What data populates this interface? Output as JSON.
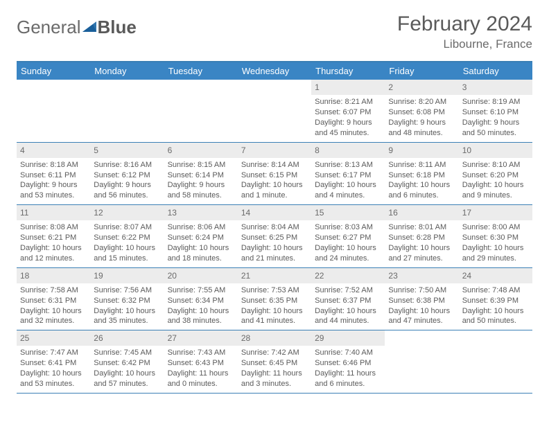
{
  "logo": {
    "left": "General",
    "right": "Blue"
  },
  "title": "February 2024",
  "location": "Libourne, France",
  "colors": {
    "header_bg": "#3a85c4",
    "header_border": "#3a7fb5",
    "daynum_bg": "#ececec",
    "text": "#5a5a5a"
  },
  "day_names": [
    "Sunday",
    "Monday",
    "Tuesday",
    "Wednesday",
    "Thursday",
    "Friday",
    "Saturday"
  ],
  "weeks": [
    [
      null,
      null,
      null,
      null,
      {
        "n": "1",
        "sr": "8:21 AM",
        "ss": "6:07 PM",
        "dl": "9 hours and 45 minutes."
      },
      {
        "n": "2",
        "sr": "8:20 AM",
        "ss": "6:08 PM",
        "dl": "9 hours and 48 minutes."
      },
      {
        "n": "3",
        "sr": "8:19 AM",
        "ss": "6:10 PM",
        "dl": "9 hours and 50 minutes."
      }
    ],
    [
      {
        "n": "4",
        "sr": "8:18 AM",
        "ss": "6:11 PM",
        "dl": "9 hours and 53 minutes."
      },
      {
        "n": "5",
        "sr": "8:16 AM",
        "ss": "6:12 PM",
        "dl": "9 hours and 56 minutes."
      },
      {
        "n": "6",
        "sr": "8:15 AM",
        "ss": "6:14 PM",
        "dl": "9 hours and 58 minutes."
      },
      {
        "n": "7",
        "sr": "8:14 AM",
        "ss": "6:15 PM",
        "dl": "10 hours and 1 minute."
      },
      {
        "n": "8",
        "sr": "8:13 AM",
        "ss": "6:17 PM",
        "dl": "10 hours and 4 minutes."
      },
      {
        "n": "9",
        "sr": "8:11 AM",
        "ss": "6:18 PM",
        "dl": "10 hours and 6 minutes."
      },
      {
        "n": "10",
        "sr": "8:10 AM",
        "ss": "6:20 PM",
        "dl": "10 hours and 9 minutes."
      }
    ],
    [
      {
        "n": "11",
        "sr": "8:08 AM",
        "ss": "6:21 PM",
        "dl": "10 hours and 12 minutes."
      },
      {
        "n": "12",
        "sr": "8:07 AM",
        "ss": "6:22 PM",
        "dl": "10 hours and 15 minutes."
      },
      {
        "n": "13",
        "sr": "8:06 AM",
        "ss": "6:24 PM",
        "dl": "10 hours and 18 minutes."
      },
      {
        "n": "14",
        "sr": "8:04 AM",
        "ss": "6:25 PM",
        "dl": "10 hours and 21 minutes."
      },
      {
        "n": "15",
        "sr": "8:03 AM",
        "ss": "6:27 PM",
        "dl": "10 hours and 24 minutes."
      },
      {
        "n": "16",
        "sr": "8:01 AM",
        "ss": "6:28 PM",
        "dl": "10 hours and 27 minutes."
      },
      {
        "n": "17",
        "sr": "8:00 AM",
        "ss": "6:30 PM",
        "dl": "10 hours and 29 minutes."
      }
    ],
    [
      {
        "n": "18",
        "sr": "7:58 AM",
        "ss": "6:31 PM",
        "dl": "10 hours and 32 minutes."
      },
      {
        "n": "19",
        "sr": "7:56 AM",
        "ss": "6:32 PM",
        "dl": "10 hours and 35 minutes."
      },
      {
        "n": "20",
        "sr": "7:55 AM",
        "ss": "6:34 PM",
        "dl": "10 hours and 38 minutes."
      },
      {
        "n": "21",
        "sr": "7:53 AM",
        "ss": "6:35 PM",
        "dl": "10 hours and 41 minutes."
      },
      {
        "n": "22",
        "sr": "7:52 AM",
        "ss": "6:37 PM",
        "dl": "10 hours and 44 minutes."
      },
      {
        "n": "23",
        "sr": "7:50 AM",
        "ss": "6:38 PM",
        "dl": "10 hours and 47 minutes."
      },
      {
        "n": "24",
        "sr": "7:48 AM",
        "ss": "6:39 PM",
        "dl": "10 hours and 50 minutes."
      }
    ],
    [
      {
        "n": "25",
        "sr": "7:47 AM",
        "ss": "6:41 PM",
        "dl": "10 hours and 53 minutes."
      },
      {
        "n": "26",
        "sr": "7:45 AM",
        "ss": "6:42 PM",
        "dl": "10 hours and 57 minutes."
      },
      {
        "n": "27",
        "sr": "7:43 AM",
        "ss": "6:43 PM",
        "dl": "11 hours and 0 minutes."
      },
      {
        "n": "28",
        "sr": "7:42 AM",
        "ss": "6:45 PM",
        "dl": "11 hours and 3 minutes."
      },
      {
        "n": "29",
        "sr": "7:40 AM",
        "ss": "6:46 PM",
        "dl": "11 hours and 6 minutes."
      },
      null,
      null
    ]
  ],
  "labels": {
    "sunrise_prefix": "Sunrise: ",
    "sunset_prefix": "Sunset: ",
    "daylight_prefix": "Daylight: "
  }
}
